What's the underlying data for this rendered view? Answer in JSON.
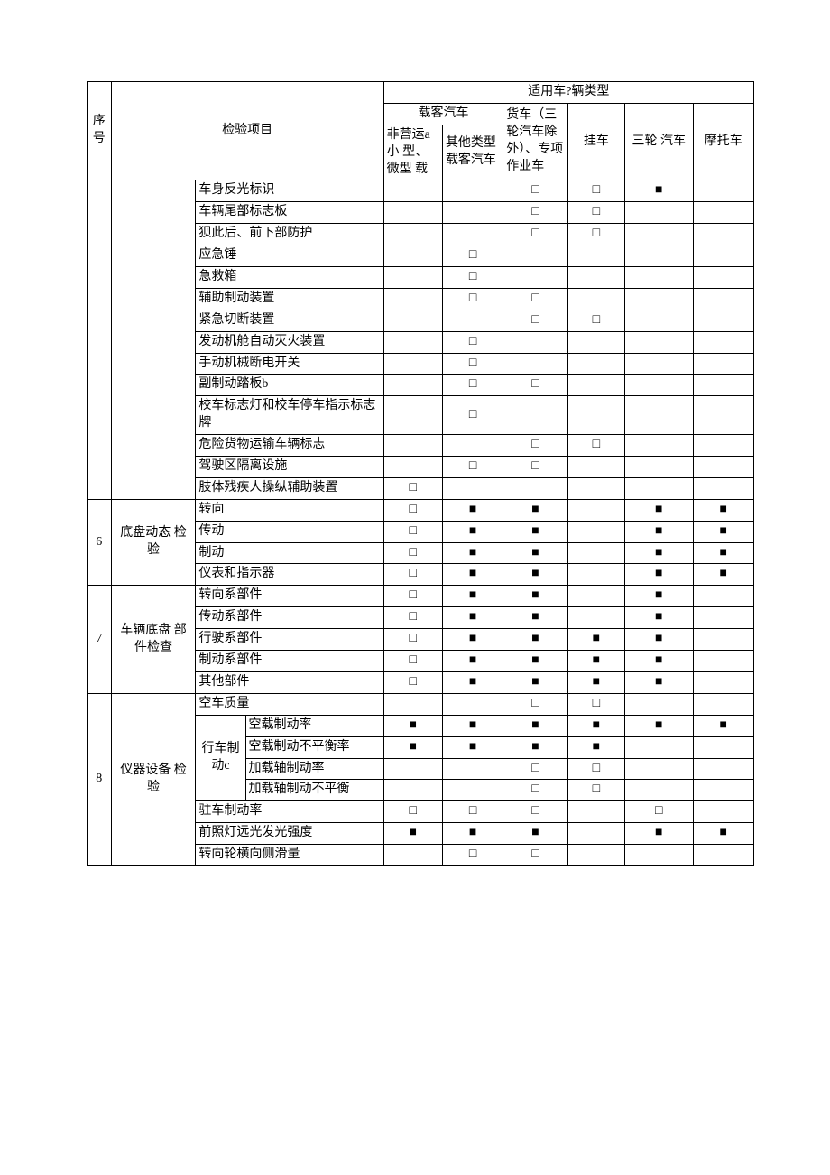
{
  "symbols": {
    "filled": "■",
    "hollow": "□"
  },
  "colors": {
    "border": "#000000",
    "bg": "#ffffff",
    "text": "#000000"
  },
  "fontsize": 14,
  "header": {
    "seq": "序号",
    "item_col": "检验项目",
    "vehicle_header": "适用车?辆类型",
    "passenger_group": "载客汽车",
    "cols": {
      "c1": "非营运a小 型、微型 载",
      "c2": "其他类型载客汽车",
      "c3": "货车（三轮汽车除外）、专项作业车",
      "c4": "挂车",
      "c5": "三轮 汽车",
      "c6": "摩托车"
    }
  },
  "section5_rows": [
    {
      "label": "车身反光标识",
      "marks": [
        "",
        "",
        "□",
        "□",
        "■",
        ""
      ]
    },
    {
      "label": "车辆尾部标志板",
      "marks": [
        "",
        "",
        "□",
        "□",
        "",
        ""
      ]
    },
    {
      "label": "狈此后、前下部防护",
      "marks": [
        "",
        "",
        "□",
        "□",
        "",
        ""
      ]
    },
    {
      "label": "应急锤",
      "marks": [
        "",
        "□",
        "",
        "",
        "",
        ""
      ]
    },
    {
      "label": "急救箱",
      "marks": [
        "",
        "□",
        "",
        "",
        "",
        ""
      ]
    },
    {
      "label": "辅助制动装置",
      "marks": [
        "",
        "□",
        "□",
        "",
        "",
        ""
      ]
    },
    {
      "label": "紧急切断装置",
      "marks": [
        "",
        "",
        "□",
        "□",
        "",
        ""
      ]
    },
    {
      "label": "发动机舱自动灭火装置",
      "marks": [
        "",
        "□",
        "",
        "",
        "",
        ""
      ]
    },
    {
      "label": "手动机械断电开关",
      "marks": [
        "",
        "□",
        "",
        "",
        "",
        ""
      ]
    },
    {
      "label": "副制动踏板b",
      "marks": [
        "",
        "□",
        "□",
        "",
        "",
        ""
      ]
    },
    {
      "label": " 校车标志灯和校车停车指示标志牌",
      "marks": [
        "",
        "□",
        "",
        "",
        "",
        ""
      ]
    },
    {
      "label": "危险货物运输车辆标志",
      "marks": [
        "",
        "",
        "□",
        "□",
        "",
        ""
      ]
    },
    {
      "label": "驾驶区隔离设施",
      "marks": [
        "",
        "□",
        "□",
        "",
        "",
        ""
      ]
    },
    {
      "label": "肢体残疾人操纵辅助装置",
      "marks": [
        "□",
        "",
        "",
        "",
        "",
        ""
      ]
    }
  ],
  "section6": {
    "num": "6",
    "cat": "底盘动态 检验",
    "rows": [
      {
        "label": "转向",
        "marks": [
          "□",
          "■",
          "■",
          "",
          "■",
          "■"
        ]
      },
      {
        "label": "传动",
        "marks": [
          "□",
          "■",
          "■",
          "",
          "■",
          "■"
        ]
      },
      {
        "label": "制动",
        "marks": [
          "□",
          "■",
          "■",
          "",
          "■",
          "■"
        ]
      },
      {
        "label": "仪表和指示器",
        "marks": [
          "□",
          "■",
          "■",
          "",
          "■",
          "■"
        ]
      }
    ]
  },
  "section7": {
    "num": "7",
    "cat": "车辆底盘 部件检查",
    "rows": [
      {
        "label": "转向系部件",
        "marks": [
          "□",
          "■",
          "■",
          "",
          "■",
          ""
        ]
      },
      {
        "label": "传动系部件",
        "marks": [
          "□",
          "■",
          "■",
          "",
          "■",
          ""
        ]
      },
      {
        "label": "行驶系部件",
        "marks": [
          "□",
          "■",
          "■",
          "■",
          "■",
          ""
        ]
      },
      {
        "label": "制动系部件",
        "marks": [
          "□",
          "■",
          "■",
          "■",
          "■",
          ""
        ]
      },
      {
        "label": "其他部件",
        "marks": [
          "□",
          "■",
          "■",
          "■",
          "■",
          ""
        ]
      }
    ]
  },
  "section8": {
    "num": "8",
    "cat": "仪器设备 检验",
    "rows_before": [
      {
        "label": "空车质量",
        "marks": [
          "",
          "",
          "□",
          "□",
          "",
          ""
        ]
      }
    ],
    "sub": {
      "label": "行车制动c",
      "rows": [
        {
          "label": "空载制动率",
          "marks": [
            "■",
            "■",
            "■",
            "■",
            "■",
            "■"
          ]
        },
        {
          "label": "空载制动不平衡率",
          "marks": [
            "■",
            "■",
            "■",
            "■",
            "",
            ""
          ]
        },
        {
          "label": "加载轴制动率",
          "marks": [
            "",
            "",
            "□",
            "□",
            "",
            ""
          ]
        },
        {
          "label": "加载轴制动不平衡",
          "marks": [
            "",
            "",
            "□",
            "□",
            "",
            ""
          ]
        }
      ]
    },
    "rows_after": [
      {
        "label": "驻车制动率",
        "marks": [
          "□",
          "□",
          "□",
          "",
          "□",
          ""
        ]
      },
      {
        "label": "前照灯远光发光强度",
        "marks": [
          "■",
          "■",
          "■",
          "",
          "■",
          "■"
        ]
      },
      {
        "label": "转向轮横向侧滑量",
        "marks": [
          "",
          "□",
          "□",
          "",
          "",
          ""
        ]
      }
    ]
  }
}
